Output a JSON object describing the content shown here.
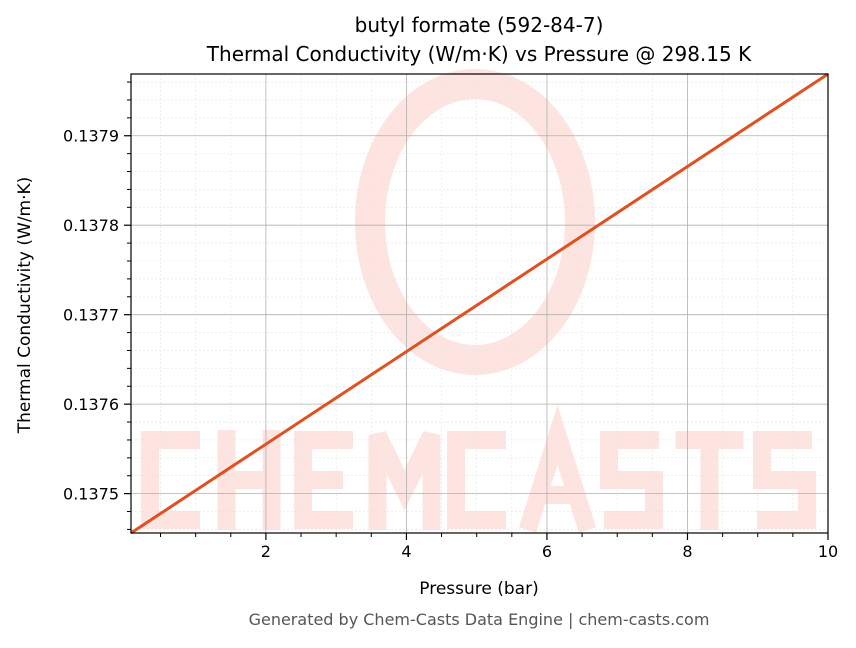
{
  "chart_data": {
    "type": "line",
    "title": "butyl formate (592-84-7)",
    "subtitle": "Thermal Conductivity (W/m·K) vs Pressure @ 298.15 K",
    "xlabel": "Pressure (bar)",
    "ylabel": "Thermal Conductivity (W/m·K)",
    "xlim": [
      0.08,
      10
    ],
    "ylim": [
      0.137456,
      0.137969
    ],
    "xticks": [
      2,
      4,
      6,
      8,
      10
    ],
    "xtick_labels": [
      "2",
      "4",
      "6",
      "8",
      "10"
    ],
    "yticks": [
      0.1375,
      0.1376,
      0.1377,
      0.1378,
      0.1379
    ],
    "ytick_labels": [
      "0.1375",
      "0.1376",
      "0.1377",
      "0.1378",
      "0.1379"
    ],
    "grid": true,
    "series": [
      {
        "name": "Thermal Conductivity",
        "color": "#e05020",
        "x": [
          0.08,
          10
        ],
        "y": [
          0.137456,
          0.137969
        ]
      }
    ]
  },
  "watermark": "CHEMCASTS",
  "footer": "Generated by Chem-Casts Data Engine | chem-casts.com"
}
